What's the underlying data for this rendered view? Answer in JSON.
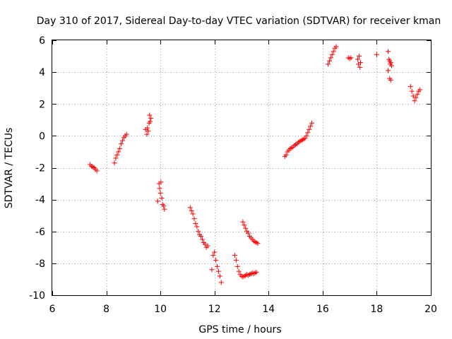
{
  "chart_data": {
    "type": "scatter",
    "title": "Day 310 of 2017, Sidereal Day-to-day VTEC variation (SDTVAR) for receiver kman",
    "xlabel": "GPS time / hours",
    "ylabel": "SDTVAR / TECUs",
    "xlim": [
      6,
      20
    ],
    "ylim": [
      -10,
      6
    ],
    "xticks": [
      6,
      8,
      10,
      12,
      14,
      16,
      18,
      20
    ],
    "yticks": [
      -10,
      -8,
      -6,
      -4,
      -2,
      0,
      2,
      4,
      6
    ],
    "xtick_labels": [
      "6",
      "8",
      "10",
      "12",
      "14",
      "16",
      "18",
      "20"
    ],
    "ytick_labels": [
      "-10",
      "-8",
      "-6",
      "-4",
      "-2",
      "0",
      "2",
      "4",
      "6"
    ],
    "grid": true,
    "marker": "+",
    "color": "#ff0000",
    "series": [
      {
        "name": "SDTVAR",
        "x": [
          7.4,
          7.45,
          7.5,
          7.55,
          7.6,
          7.65,
          8.3,
          8.35,
          8.4,
          8.45,
          8.5,
          8.55,
          8.6,
          8.65,
          8.7,
          8.75,
          9.45,
          9.5,
          9.52,
          9.55,
          9.58,
          9.6,
          9.62,
          9.65,
          9.9,
          9.95,
          9.97,
          10.0,
          10.02,
          10.05,
          10.08,
          10.12,
          10.15,
          11.1,
          11.15,
          11.2,
          11.25,
          11.3,
          11.35,
          11.4,
          11.45,
          11.5,
          11.55,
          11.6,
          11.65,
          11.7,
          11.75,
          11.9,
          11.95,
          12.0,
          12.05,
          12.1,
          12.15,
          12.2,
          12.25,
          12.75,
          12.8,
          12.85,
          12.9,
          12.95,
          13.0,
          13.05,
          13.1,
          13.15,
          13.2,
          13.25,
          13.3,
          13.35,
          13.4,
          13.45,
          13.5,
          13.55,
          13.05,
          13.1,
          13.15,
          13.2,
          13.25,
          13.3,
          13.35,
          13.4,
          13.45,
          13.5,
          13.55,
          13.6,
          14.6,
          14.65,
          14.7,
          14.75,
          14.8,
          14.85,
          14.9,
          14.95,
          15.0,
          15.05,
          15.1,
          15.15,
          15.2,
          15.25,
          15.3,
          15.35,
          15.4,
          15.45,
          15.5,
          15.55,
          15.6,
          16.2,
          16.25,
          16.3,
          16.35,
          16.4,
          16.45,
          16.5,
          16.95,
          17.0,
          17.05,
          17.3,
          17.32,
          17.35,
          17.38,
          17.4,
          18.0,
          18.42,
          18.45,
          18.48,
          18.5,
          18.52,
          18.55,
          18.42,
          18.48,
          18.52,
          19.25,
          19.3,
          19.35,
          19.4,
          19.45,
          19.5,
          19.55,
          19.6
        ],
        "y": [
          -1.8,
          -1.9,
          -1.95,
          -2.0,
          -2.1,
          -2.2,
          -1.7,
          -1.4,
          -1.2,
          -1.0,
          -0.8,
          -0.5,
          -0.3,
          -0.1,
          0.0,
          0.1,
          0.4,
          0.1,
          0.5,
          0.3,
          0.8,
          1.3,
          0.9,
          1.1,
          -4.1,
          -3.0,
          -3.3,
          -3.6,
          -2.9,
          -3.9,
          -4.3,
          -4.4,
          -4.6,
          -4.5,
          -4.7,
          -4.9,
          -5.2,
          -5.5,
          -5.7,
          -6.0,
          -6.2,
          -6.3,
          -6.5,
          -6.7,
          -6.8,
          -7.0,
          -6.9,
          -8.4,
          -7.5,
          -7.3,
          -7.8,
          -8.2,
          -8.5,
          -8.8,
          -9.2,
          -7.5,
          -7.8,
          -8.2,
          -8.5,
          -8.7,
          -8.8,
          -8.85,
          -8.8,
          -8.75,
          -8.7,
          -8.75,
          -8.7,
          -8.65,
          -8.6,
          -8.65,
          -8.6,
          -8.55,
          -5.4,
          -5.6,
          -5.8,
          -6.0,
          -6.1,
          -6.3,
          -6.4,
          -6.5,
          -6.6,
          -6.65,
          -6.7,
          -6.75,
          -1.3,
          -1.2,
          -1.0,
          -0.9,
          -0.8,
          -0.75,
          -0.7,
          -0.6,
          -0.55,
          -0.5,
          -0.4,
          -0.35,
          -0.3,
          -0.25,
          -0.2,
          -0.15,
          0.0,
          0.2,
          0.4,
          0.6,
          0.8,
          4.5,
          4.7,
          4.9,
          5.1,
          5.3,
          5.5,
          5.6,
          4.9,
          4.85,
          4.9,
          4.8,
          4.5,
          5.0,
          4.3,
          4.6,
          5.1,
          5.3,
          4.8,
          4.7,
          4.5,
          4.6,
          4.4,
          4.1,
          3.6,
          3.5,
          3.1,
          2.8,
          2.5,
          2.2,
          2.4,
          2.6,
          2.8,
          2.9
        ]
      }
    ]
  }
}
